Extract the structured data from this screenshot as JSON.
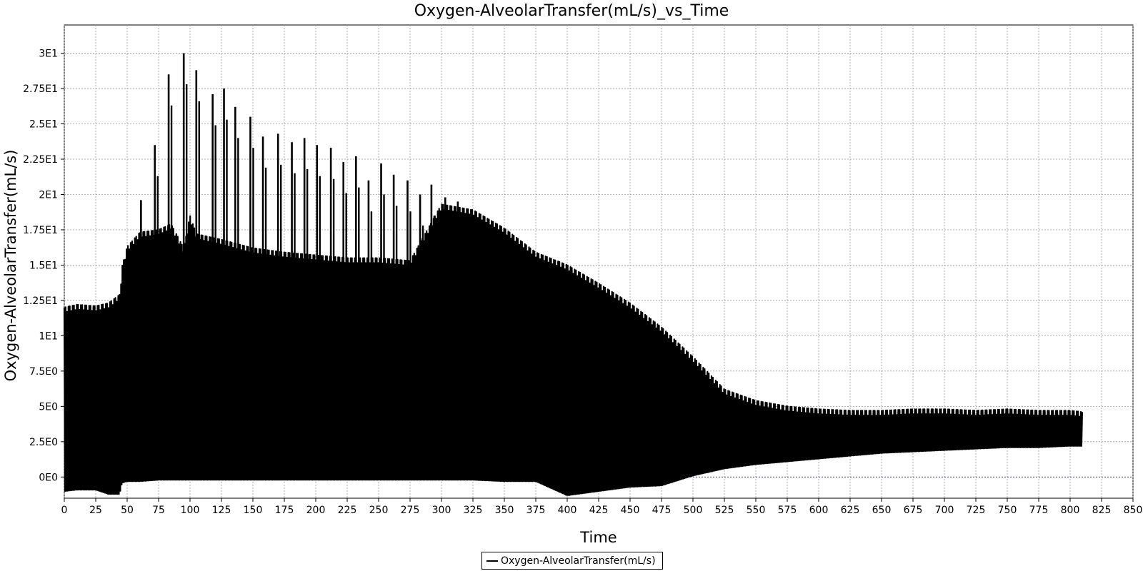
{
  "chart_data": {
    "type": "line",
    "title": "Oxygen-AlveolarTransfer(mL/s)_vs_Time",
    "xlabel": "Time",
    "ylabel": "Oxygen-AlveolarTransfer(mL/s)",
    "xlim": [
      0,
      850
    ],
    "ylim": [
      -1.5,
      32
    ],
    "x_ticks": [
      0,
      25,
      50,
      75,
      100,
      125,
      150,
      175,
      200,
      225,
      250,
      275,
      300,
      325,
      350,
      375,
      400,
      425,
      450,
      475,
      500,
      525,
      550,
      575,
      600,
      625,
      650,
      675,
      700,
      725,
      750,
      775,
      800,
      825,
      850
    ],
    "y_ticks": [
      {
        "value": 0,
        "label": "0E0"
      },
      {
        "value": 2.5,
        "label": "2.5E0"
      },
      {
        "value": 5,
        "label": "5E0"
      },
      {
        "value": 7.5,
        "label": "7.5E0"
      },
      {
        "value": 10,
        "label": "1E1"
      },
      {
        "value": 12.5,
        "label": "1.25E1"
      },
      {
        "value": 15,
        "label": "1.5E1"
      },
      {
        "value": 17.5,
        "label": "1.75E1"
      },
      {
        "value": 20,
        "label": "2E1"
      },
      {
        "value": 22.5,
        "label": "2.25E1"
      },
      {
        "value": 25,
        "label": "2.5E1"
      },
      {
        "value": 27.5,
        "label": "2.75E1"
      },
      {
        "value": 30,
        "label": "3E1"
      }
    ],
    "grid": true,
    "legend_position": "bottom",
    "series": [
      {
        "name": "Oxygen-AlveolarTransfer(mL/s)",
        "color": "#000000",
        "note_type": "oscillating signal envelope",
        "t": [
          0,
          10,
          25,
          35,
          44,
          46,
          50,
          60,
          75,
          85,
          95,
          100,
          105,
          125,
          150,
          175,
          200,
          225,
          250,
          275,
          300,
          325,
          350,
          375,
          400,
          425,
          450,
          475,
          500,
          525,
          550,
          575,
          600,
          625,
          650,
          675,
          700,
          725,
          750,
          775,
          800,
          810
        ],
        "upper": [
          12.0,
          12.2,
          12.1,
          12.3,
          12.9,
          14.9,
          16.3,
          17.3,
          17.5,
          17.9,
          16.2,
          18.5,
          17.2,
          16.8,
          16.2,
          15.9,
          15.7,
          15.5,
          15.5,
          15.3,
          19.3,
          18.9,
          17.6,
          15.9,
          15.0,
          13.7,
          12.3,
          10.6,
          8.5,
          6.2,
          5.4,
          5.0,
          4.8,
          4.7,
          4.7,
          4.8,
          4.8,
          4.7,
          4.8,
          4.7,
          4.7,
          4.6
        ],
        "lower": [
          -1.0,
          -0.9,
          -0.9,
          -1.2,
          -1.2,
          -0.4,
          -0.3,
          -0.3,
          -0.2,
          -0.2,
          -0.2,
          -0.2,
          -0.2,
          -0.2,
          -0.2,
          -0.2,
          -0.2,
          -0.2,
          -0.2,
          -0.2,
          -0.2,
          -0.2,
          -0.3,
          -0.3,
          -1.3,
          -1.0,
          -0.7,
          -0.6,
          0.1,
          0.6,
          0.9,
          1.1,
          1.3,
          1.5,
          1.7,
          1.8,
          1.9,
          2.0,
          2.1,
          2.1,
          2.2,
          2.2
        ]
      }
    ],
    "peak_spikes": [
      {
        "t": 61,
        "y": 19.6
      },
      {
        "t": 72,
        "y": 23.5
      },
      {
        "t": 83,
        "y": 28.5
      },
      {
        "t": 95,
        "y": 30.0
      },
      {
        "t": 105,
        "y": 28.8
      },
      {
        "t": 118,
        "y": 27.1
      },
      {
        "t": 127,
        "y": 27.5
      },
      {
        "t": 136,
        "y": 26.2
      },
      {
        "t": 148,
        "y": 25.5
      },
      {
        "t": 158,
        "y": 24.1
      },
      {
        "t": 170,
        "y": 24.3
      },
      {
        "t": 181,
        "y": 23.7
      },
      {
        "t": 191,
        "y": 24.0
      },
      {
        "t": 201,
        "y": 23.5
      },
      {
        "t": 212,
        "y": 23.3
      },
      {
        "t": 222,
        "y": 22.3
      },
      {
        "t": 232,
        "y": 22.7
      },
      {
        "t": 242,
        "y": 21.0
      },
      {
        "t": 252,
        "y": 22.2
      },
      {
        "t": 262,
        "y": 21.4
      },
      {
        "t": 273,
        "y": 21.0
      },
      {
        "t": 283,
        "y": 20.0
      },
      {
        "t": 292,
        "y": 20.7
      },
      {
        "t": 303,
        "y": 19.8
      },
      {
        "t": 313,
        "y": 19.5
      }
    ]
  }
}
